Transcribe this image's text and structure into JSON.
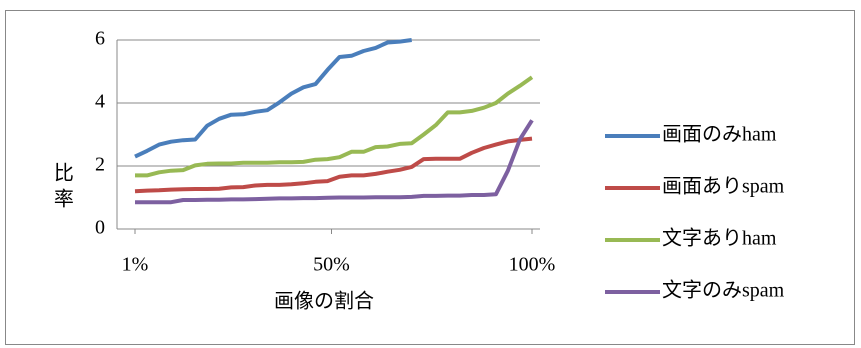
{
  "chart_data": {
    "type": "line",
    "x_label": "画像の割合",
    "y_label": "比率",
    "x": [
      1,
      4,
      7,
      10,
      13,
      16,
      19,
      22,
      25,
      28,
      31,
      34,
      37,
      40,
      43,
      46,
      49,
      52,
      55,
      58,
      61,
      64,
      67,
      70,
      73,
      76,
      79,
      82,
      85,
      88,
      91,
      94,
      97,
      100
    ],
    "series": [
      {
        "name": "画面のみham",
        "color": "#4a7ebb",
        "values": [
          2.3,
          2.48,
          2.68,
          2.77,
          2.82,
          2.84,
          3.28,
          3.5,
          3.63,
          3.64,
          3.72,
          3.77,
          4.02,
          4.3,
          4.5,
          4.6,
          5.05,
          5.46,
          5.5,
          5.65,
          5.75,
          5.92,
          5.95,
          6.0,
          null,
          null,
          null,
          null,
          null,
          null,
          null,
          null,
          null,
          null
        ]
      },
      {
        "name": " 画面ありspam",
        "color": "#be4b48",
        "values": [
          1.2,
          1.22,
          1.23,
          1.25,
          1.26,
          1.27,
          1.27,
          1.28,
          1.32,
          1.33,
          1.38,
          1.4,
          1.4,
          1.42,
          1.45,
          1.5,
          1.52,
          1.66,
          1.7,
          1.7,
          1.75,
          1.82,
          1.88,
          1.97,
          2.22,
          2.23,
          2.23,
          2.23,
          2.42,
          2.57,
          2.68,
          2.78,
          2.83,
          2.87
        ]
      },
      {
        "name": "文字ありham",
        "color": "#98b954",
        "values": [
          1.7,
          1.7,
          1.8,
          1.85,
          1.87,
          2.02,
          2.07,
          2.08,
          2.08,
          2.1,
          2.1,
          2.1,
          2.12,
          2.12,
          2.13,
          2.2,
          2.22,
          2.28,
          2.45,
          2.45,
          2.6,
          2.62,
          2.7,
          2.72,
          3.0,
          3.3,
          3.7,
          3.7,
          3.75,
          3.85,
          4.0,
          4.3,
          4.55,
          4.82
        ]
      },
      {
        "name": "文字のみspam",
        "color": "#7d60a0",
        "values": [
          0.85,
          0.85,
          0.85,
          0.85,
          0.92,
          0.92,
          0.93,
          0.93,
          0.94,
          0.94,
          0.95,
          0.96,
          0.97,
          0.97,
          0.98,
          0.98,
          0.99,
          1.0,
          1.0,
          1.0,
          1.01,
          1.01,
          1.01,
          1.02,
          1.05,
          1.05,
          1.06,
          1.06,
          1.08,
          1.08,
          1.1,
          1.85,
          2.85,
          3.45
        ]
      }
    ],
    "xlim": [
      1,
      100
    ],
    "xticks": [
      {
        "value": 1,
        "label": "1%"
      },
      {
        "value": 50,
        "label": "50%"
      },
      {
        "value": 100,
        "label": "100%"
      }
    ],
    "ylim": [
      0,
      6
    ],
    "yticks": [
      0,
      2,
      4,
      6
    ],
    "grid": true,
    "legend": "right"
  }
}
